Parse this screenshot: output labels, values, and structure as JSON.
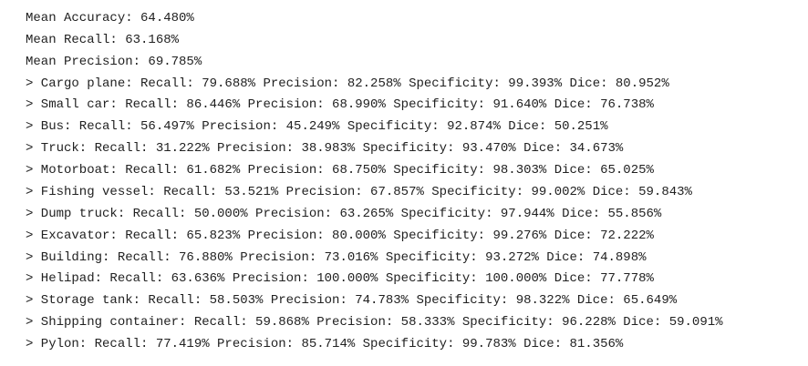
{
  "lines": [
    "Mean Accuracy: 64.480%",
    "Mean Recall: 63.168%",
    "Mean Precision: 69.785%",
    "> Cargo plane: Recall: 79.688% Precision: 82.258% Specificity: 99.393% Dice: 80.952%",
    "> Small car: Recall: 86.446% Precision: 68.990% Specificity: 91.640% Dice: 76.738%",
    "> Bus: Recall: 56.497% Precision: 45.249% Specificity: 92.874% Dice: 50.251%",
    "> Truck: Recall: 31.222% Precision: 38.983% Specificity: 93.470% Dice: 34.673%",
    "> Motorboat: Recall: 61.682% Precision: 68.750% Specificity: 98.303% Dice: 65.025%",
    "> Fishing vessel: Recall: 53.521% Precision: 67.857% Specificity: 99.002% Dice: 59.843%",
    "> Dump truck: Recall: 50.000% Precision: 63.265% Specificity: 97.944% Dice: 55.856%",
    "> Excavator: Recall: 65.823% Precision: 80.000% Specificity: 99.276% Dice: 72.222%",
    "> Building: Recall: 76.880% Precision: 73.016% Specificity: 93.272% Dice: 74.898%",
    "> Helipad: Recall: 63.636% Precision: 100.000% Specificity: 100.000% Dice: 77.778%",
    "> Storage tank: Recall: 58.503% Precision: 74.783% Specificity: 98.322% Dice: 65.649%",
    "> Shipping container: Recall: 59.868% Precision: 58.333% Specificity: 96.228% Dice: 59.091%",
    "> Pylon: Recall: 77.419% Precision: 85.714% Specificity: 99.783% Dice: 81.356%"
  ]
}
